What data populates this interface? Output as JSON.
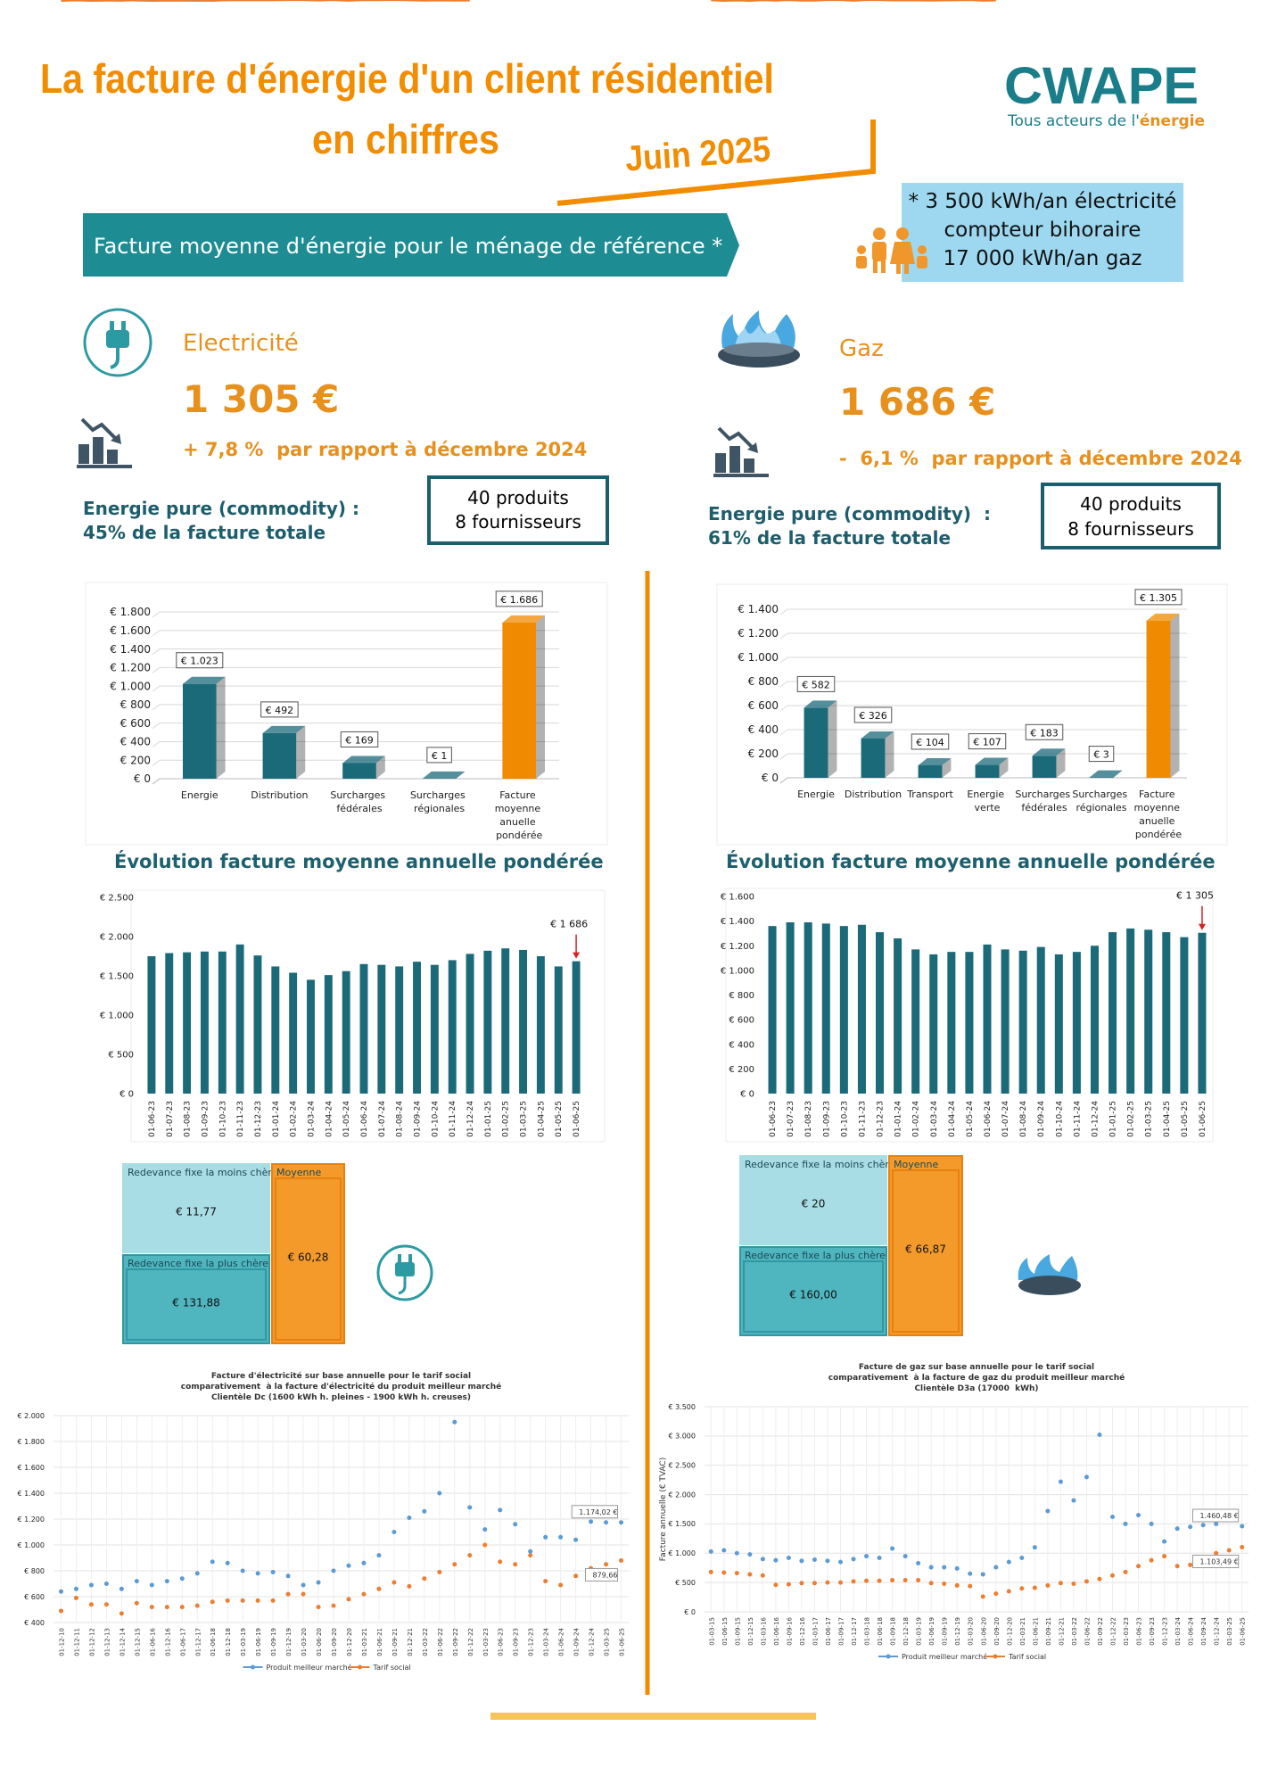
{
  "header": {
    "title_lines": [
      "La facture d'énergie d'un client résidentiel",
      "en chiffres"
    ],
    "date": "Juin 2025",
    "logo": "CWAPE",
    "tagline": [
      "Tous acteurs de l'",
      "énergie"
    ]
  },
  "banner": "Facture moyenne d'énergie pour le ménage de référence *",
  "reference": [
    "* 3 500 kWh/an électricité",
    "compteur bihoraire",
    "17 000 kWh/an gaz"
  ],
  "electricity": {
    "label": "Electricité",
    "amount": "1 305 €",
    "change": "+ 7,8 %  par rapport à décembre 2024",
    "commodity": [
      "Energie pure (commodity) :",
      "45% de la facture totale"
    ],
    "offer": [
      "40 produits",
      "8 fournisseurs"
    ]
  },
  "gas": {
    "label": "Gaz",
    "amount": "1 686 €",
    "change": "-  6,1 %  par rapport à décembre 2024",
    "commodity": [
      "Energie pure (commodity)  :",
      "61% de la facture totale"
    ],
    "offer": [
      "40 produits",
      "8 fournisseurs"
    ]
  },
  "sections": [
    "Évolution facture moyenne annuelle pondérée",
    "Évolution facture moyenne annuelle pondérée"
  ],
  "fixed_fee_electricity": [
    {
      "label": "Redevance fixe la moins chère",
      "value": "€ 11,77"
    },
    {
      "label": "Redevance fixe la plus chère",
      "value": "€ 131,88"
    },
    {
      "label": "Moyenne",
      "value": "€ 60,28"
    }
  ],
  "fixed_fee_gas": [
    {
      "label": "Redevance fixe la moins chère",
      "value": "€ 20"
    },
    {
      "label": "Redevance fixe la plus chère",
      "value": "€ 160,00"
    },
    {
      "label": "Moyenne",
      "value": "€ 66,87"
    }
  ],
  "chart_data": [
    {
      "type": "bar",
      "categories": [
        "Energie",
        "Distribution",
        "Surcharges fédérales",
        "Surcharges régionales",
        "Facture moyenne anuelle pondérée"
      ],
      "values": [
        1023,
        492,
        169,
        1,
        1686
      ],
      "value_labels": [
        "€ 1.023",
        "€ 492",
        "€ 169",
        "€ 1",
        "€ 1.686"
      ],
      "colors": [
        "#1b6a7a",
        "#1b6a7a",
        "#1b6a7a",
        "#1b6a7a",
        "#f08a00"
      ],
      "ylim": [
        0,
        1800
      ],
      "yticks": [
        {
          "value": 0,
          "label": "€ 0"
        },
        {
          "value": 200,
          "label": "€ 200"
        },
        {
          "value": 400,
          "label": "€ 400"
        },
        {
          "value": 600,
          "label": "€ 600"
        },
        {
          "value": 800,
          "label": "€ 800"
        },
        {
          "value": 1000,
          "label": "€ 1.000"
        },
        {
          "value": 1200,
          "label": "€ 1.200"
        },
        {
          "value": 1400,
          "label": "€ 1.400"
        },
        {
          "value": 1600,
          "label": "€ 1.600"
        },
        {
          "value": 1800,
          "label": "€ 1.800"
        }
      ],
      "grid": true
    },
    {
      "type": "bar",
      "categories": [
        "Energie",
        "Distribution",
        "Transport",
        "Energie verte",
        "Surcharges fédérales",
        "Surcharges régionales",
        "Facture moyenne anuelle pondérée"
      ],
      "values": [
        582,
        326,
        104,
        107,
        183,
        3,
        1305
      ],
      "value_labels": [
        "€ 582",
        "€ 326",
        "€ 104",
        "€ 107",
        "€ 183",
        "€ 3",
        "€ 1.305"
      ],
      "colors": [
        "#1b6a7a",
        "#1b6a7a",
        "#1b6a7a",
        "#1b6a7a",
        "#1b6a7a",
        "#1b6a7a",
        "#f08a00"
      ],
      "ylim": [
        0,
        1400
      ],
      "yticks": [
        {
          "value": 0,
          "label": "€ 0"
        },
        {
          "value": 200,
          "label": "€ 200"
        },
        {
          "value": 400,
          "label": "€ 400"
        },
        {
          "value": 600,
          "label": "€ 600"
        },
        {
          "value": 800,
          "label": "€ 800"
        },
        {
          "value": 1000,
          "label": "€ 1.000"
        },
        {
          "value": 1200,
          "label": "€ 1.200"
        },
        {
          "value": 1400,
          "label": "€ 1.400"
        }
      ],
      "grid": true
    },
    {
      "type": "bar",
      "categories": [
        "01-06-23",
        "01-07-23",
        "01-08-23",
        "01-09-23",
        "01-10-23",
        "01-11-23",
        "01-12-23",
        "01-01-24",
        "01-02-24",
        "01-03-24",
        "01-04-24",
        "01-05-24",
        "01-06-24",
        "01-07-24",
        "01-08-24",
        "01-09-24",
        "01-10-24",
        "01-11-24",
        "01-12-24",
        "01-01-25",
        "01-02-25",
        "01-03-25",
        "01-04-25",
        "01-05-25",
        "01-06-25"
      ],
      "values": [
        1750,
        1790,
        1800,
        1810,
        1810,
        1900,
        1760,
        1620,
        1540,
        1450,
        1510,
        1560,
        1650,
        1640,
        1620,
        1680,
        1640,
        1700,
        1780,
        1820,
        1850,
        1830,
        1750,
        1620,
        1686
      ],
      "value_labels": [
        null,
        null,
        null,
        null,
        null,
        null,
        null,
        null,
        null,
        null,
        null,
        null,
        null,
        null,
        null,
        null,
        null,
        null,
        null,
        null,
        null,
        null,
        null,
        null,
        "€ 1 686"
      ],
      "color": "#1b6a7a",
      "ylim": [
        0,
        2500
      ],
      "yticks": [
        {
          "value": 0,
          "label": "€ 0"
        },
        {
          "value": 500,
          "label": "€ 500"
        },
        {
          "value": 1000,
          "label": "€ 1.000"
        },
        {
          "value": 1500,
          "label": "€ 1.500"
        },
        {
          "value": 2000,
          "label": "€ 2.000"
        },
        {
          "value": 2500,
          "label": "€ 2.500"
        }
      ],
      "grid": false
    },
    {
      "type": "bar",
      "categories": [
        "01-06-23",
        "01-07-23",
        "01-08-23",
        "01-09-23",
        "01-10-23",
        "01-11-23",
        "01-12-23",
        "01-01-24",
        "01-02-24",
        "01-03-24",
        "01-04-24",
        "01-05-24",
        "01-06-24",
        "01-07-24",
        "01-08-24",
        "01-09-24",
        "01-10-24",
        "01-11-24",
        "01-12-24",
        "01-01-25",
        "01-02-25",
        "01-03-25",
        "01-04-25",
        "01-05-25",
        "01-06-25"
      ],
      "values": [
        1360,
        1390,
        1390,
        1380,
        1360,
        1370,
        1310,
        1260,
        1170,
        1130,
        1150,
        1150,
        1210,
        1170,
        1160,
        1190,
        1130,
        1150,
        1200,
        1310,
        1340,
        1330,
        1310,
        1270,
        1305
      ],
      "value_labels": [
        null,
        null,
        null,
        null,
        null,
        null,
        null,
        null,
        null,
        null,
        null,
        null,
        null,
        null,
        null,
        null,
        null,
        null,
        null,
        null,
        null,
        null,
        null,
        null,
        "€ 1 305"
      ],
      "color": "#1b6a7a",
      "ylim": [
        0,
        1600
      ],
      "yticks": [
        {
          "value": 0,
          "label": "€ 0"
        },
        {
          "value": 200,
          "label": "€ 200"
        },
        {
          "value": 400,
          "label": "€ 400"
        },
        {
          "value": 600,
          "label": "€ 600"
        },
        {
          "value": 800,
          "label": "€ 800"
        },
        {
          "value": 1000,
          "label": "€ 1.000"
        },
        {
          "value": 1200,
          "label": "€ 1.200"
        },
        {
          "value": 1400,
          "label": "€ 1.400"
        },
        {
          "value": 1600,
          "label": "€ 1.600"
        }
      ],
      "grid": false
    },
    {
      "type": "line",
      "title": [
        "Facture d'électricité sur base annuelle pour le tarif social",
        "comparativement  à la facture d'électricité du produit meilleur marché",
        "Clientèle Dc (1600 kWh h. pleines - 1900 kWh h. creuses)"
      ],
      "categories": [
        "01-12-10",
        "01-12-11",
        "01-12-12",
        "01-12-13",
        "01-12-14",
        "01-12-15",
        "01-06-16",
        "01-12-16",
        "01-06-17",
        "01-12-17",
        "01-06-18",
        "01-12-18",
        "01-03-19",
        "01-06-19",
        "01-09-19",
        "01-12-19",
        "01-03-20",
        "01-06-20",
        "01-09-20",
        "01-12-20",
        "01-03-21",
        "01-06-21",
        "01-09-21",
        "01-12-21",
        "01-03-22",
        "01-06-22",
        "01-09-22",
        "01-12-22",
        "01-03-23",
        "01-06-23",
        "01-09-23",
        "01-12-23",
        "01-03-24",
        "01-06-24",
        "01-09-24",
        "01-12-24",
        "01-03-25",
        "01-06-25"
      ],
      "series": [
        {
          "name": "Produit meilleur marché",
          "color": "#5b9bd5",
          "values": [
            640,
            660,
            690,
            700,
            660,
            720,
            690,
            720,
            740,
            780,
            870,
            860,
            800,
            780,
            790,
            760,
            690,
            710,
            800,
            840,
            860,
            920,
            1100,
            1210,
            1260,
            1400,
            1950,
            1290,
            1120,
            1270,
            1160,
            950,
            1060,
            1060,
            1040,
            1180,
            1174.02,
            1174.02
          ],
          "value_labels": [
            null,
            null,
            null,
            null,
            null,
            null,
            null,
            null,
            null,
            null,
            null,
            null,
            null,
            null,
            null,
            null,
            null,
            null,
            null,
            null,
            null,
            null,
            null,
            null,
            null,
            null,
            null,
            null,
            null,
            null,
            null,
            null,
            null,
            null,
            null,
            null,
            null,
            "1.174,02 €"
          ]
        },
        {
          "name": "Tarif social",
          "color": "#ed7d31",
          "values": [
            490,
            590,
            540,
            540,
            470,
            550,
            520,
            520,
            520,
            530,
            560,
            570,
            570,
            570,
            570,
            620,
            620,
            520,
            530,
            580,
            620,
            660,
            710,
            680,
            740,
            790,
            850,
            920,
            1000,
            870,
            850,
            920,
            720,
            690,
            760,
            820,
            850,
            879.66
          ],
          "value_labels": [
            null,
            null,
            null,
            null,
            null,
            null,
            null,
            null,
            null,
            null,
            null,
            null,
            null,
            null,
            null,
            null,
            null,
            null,
            null,
            null,
            null,
            null,
            null,
            null,
            null,
            null,
            null,
            null,
            null,
            null,
            null,
            null,
            null,
            null,
            null,
            null,
            null,
            "879,66"
          ]
        }
      ],
      "ylim": [
        400,
        2000
      ],
      "yticks": [
        {
          "value": 400,
          "label": "€ 400"
        },
        {
          "value": 600,
          "label": "€ 600"
        },
        {
          "value": 800,
          "label": "€ 800"
        },
        {
          "value": 1000,
          "label": "€ 1.000"
        },
        {
          "value": 1200,
          "label": "€ 1.200"
        },
        {
          "value": 1400,
          "label": "€ 1.400"
        },
        {
          "value": 1600,
          "label": "€ 1.600"
        },
        {
          "value": 1800,
          "label": "€ 1.800"
        },
        {
          "value": 2000,
          "label": "€ 2.000"
        }
      ],
      "grid": true
    },
    {
      "type": "line",
      "title": [
        "Facture de gaz sur base annuelle pour le tarif social",
        "comparativement  à la facture de gaz du produit meilleur marché",
        "Clientèle D3a (17000  kWh)"
      ],
      "y_label": "Facture annuelle (€ TVAC)",
      "categories": [
        "01-03-15",
        "01-06-15",
        "01-09-15",
        "01-12-15",
        "01-03-16",
        "01-06-16",
        "01-09-16",
        "01-12-16",
        "01-03-17",
        "01-06-17",
        "01-09-17",
        "01-12-17",
        "01-03-18",
        "01-06-18",
        "01-09-18",
        "01-12-18",
        "01-03-19",
        "01-06-19",
        "01-09-19",
        "01-12-19",
        "01-03-20",
        "01-06-20",
        "01-09-20",
        "01-12-20",
        "01-03-21",
        "01-06-21",
        "01-09-21",
        "01-12-21",
        "01-03-22",
        "01-06-22",
        "01-09-22",
        "01-12-22",
        "01-03-23",
        "01-06-23",
        "01-09-23",
        "01-12-23",
        "01-03-24",
        "01-06-24",
        "01-09-24",
        "01-12-24",
        "01-03-25",
        "01-06-25"
      ],
      "series": [
        {
          "name": "Produit meilleur marché",
          "color": "#5b9bd5",
          "values": [
            1030,
            1050,
            1000,
            980,
            900,
            880,
            920,
            870,
            890,
            870,
            850,
            900,
            950,
            920,
            1080,
            950,
            830,
            760,
            760,
            740,
            650,
            640,
            760,
            850,
            920,
            1100,
            1720,
            2220,
            1900,
            2300,
            3020,
            1620,
            1500,
            1650,
            1500,
            1200,
            1420,
            1450,
            1480,
            1500,
            1590,
            1460.48
          ],
          "value_labels": [
            null,
            null,
            null,
            null,
            null,
            null,
            null,
            null,
            null,
            null,
            null,
            null,
            null,
            null,
            null,
            null,
            null,
            null,
            null,
            null,
            null,
            null,
            null,
            null,
            null,
            null,
            null,
            null,
            null,
            null,
            null,
            null,
            null,
            null,
            null,
            null,
            null,
            null,
            null,
            null,
            null,
            "1.460,48 €"
          ]
        },
        {
          "name": "Tarif social",
          "color": "#ed7d31",
          "values": [
            680,
            670,
            660,
            640,
            620,
            460,
            470,
            490,
            490,
            500,
            500,
            520,
            530,
            530,
            540,
            540,
            540,
            490,
            480,
            450,
            440,
            260,
            310,
            350,
            400,
            410,
            450,
            490,
            480,
            520,
            560,
            620,
            680,
            780,
            880,
            950,
            780,
            800,
            900,
            1000,
            1050,
            1103.49
          ],
          "value_labels": [
            null,
            null,
            null,
            null,
            null,
            null,
            null,
            null,
            null,
            null,
            null,
            null,
            null,
            null,
            null,
            null,
            null,
            null,
            null,
            null,
            null,
            null,
            null,
            null,
            null,
            null,
            null,
            null,
            null,
            null,
            null,
            null,
            null,
            null,
            null,
            null,
            null,
            null,
            null,
            null,
            null,
            "1.103,49 €"
          ]
        }
      ],
      "ylim": [
        0,
        3500
      ],
      "yticks": [
        {
          "value": 0,
          "label": "€ 0"
        },
        {
          "value": 500,
          "label": "€ 500"
        },
        {
          "value": 1000,
          "label": "€ 1.000"
        },
        {
          "value": 1500,
          "label": "€ 1.500"
        },
        {
          "value": 2000,
          "label": "€ 2.000"
        },
        {
          "value": 2500,
          "label": "€ 2.500"
        },
        {
          "value": 3000,
          "label": "€ 3.000"
        },
        {
          "value": 3500,
          "label": "€ 3.500"
        }
      ],
      "grid": true
    }
  ]
}
